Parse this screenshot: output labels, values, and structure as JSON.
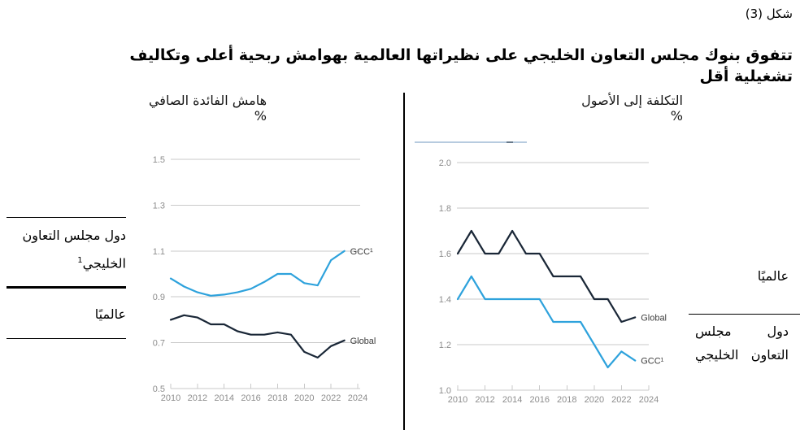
{
  "figure_label": "شكل (3)",
  "subtitle": "تتفوق بنوك مجلس التعاون الخليجي على نظيراتها العالمية بهوامش ربحية أعلى وتكاليف تشغيلية أقل",
  "annotations_left": {
    "gcc_label": "دول مجلس التعاون الخليجي",
    "gcc_footnote_mark": "1",
    "global_label": "عالميًا"
  },
  "annotations_right": {
    "global_label": "عالميًا",
    "gcc_label_line1": "دول مجلس",
    "gcc_label_line2": "التعاون الخليجي"
  },
  "colors": {
    "gcc_line": "#2ea2dc",
    "global_line": "#1a2737",
    "grid": "#c9c9c9",
    "axis_text": "#8d8d8d",
    "series_label_text": "#3d3d3d",
    "artifact_line": "#b7cbdf"
  },
  "chart_data": [
    {
      "type": "line",
      "title": "هامش الفائدة الصافي %",
      "x": [
        2010,
        2011,
        2012,
        2013,
        2014,
        2015,
        2016,
        2017,
        2018,
        2019,
        2020,
        2021,
        2022,
        2023
      ],
      "xticks": [
        2010,
        2012,
        2014,
        2016,
        2018,
        2020,
        2022,
        2024
      ],
      "xlim": [
        2010,
        2024
      ],
      "ylim": [
        0.5,
        1.5
      ],
      "yticks": [
        0.5,
        0.7,
        0.9,
        1.1,
        1.3,
        1.5
      ],
      "grid": true,
      "legend_position": "line-end-labels",
      "series": [
        {
          "name": "GCC¹",
          "color_key": "gcc_line",
          "values": [
            0.98,
            0.945,
            0.92,
            0.905,
            0.91,
            0.92,
            0.935,
            0.965,
            1.0,
            1.0,
            0.96,
            0.95,
            1.06,
            1.1
          ]
        },
        {
          "name": "Global",
          "color_key": "global_line",
          "values": [
            0.8,
            0.82,
            0.81,
            0.78,
            0.78,
            0.75,
            0.735,
            0.735,
            0.745,
            0.735,
            0.66,
            0.635,
            0.685,
            0.71
          ]
        }
      ]
    },
    {
      "type": "line",
      "title": "التكلفة إلى الأصول %",
      "x": [
        2010,
        2011,
        2012,
        2013,
        2014,
        2015,
        2016,
        2017,
        2018,
        2019,
        2020,
        2021,
        2022,
        2023
      ],
      "xticks": [
        2010,
        2012,
        2014,
        2016,
        2018,
        2020,
        2022,
        2024
      ],
      "xlim": [
        2010,
        2024
      ],
      "ylim": [
        1.0,
        2.0
      ],
      "yticks": [
        1.0,
        1.2,
        1.4,
        1.6,
        1.8,
        2.0
      ],
      "grid": true,
      "legend_position": "line-end-labels",
      "series": [
        {
          "name": "Global",
          "color_key": "global_line",
          "values": [
            1.6,
            1.7,
            1.6,
            1.6,
            1.7,
            1.6,
            1.6,
            1.5,
            1.5,
            1.5,
            1.4,
            1.4,
            1.3,
            1.32
          ]
        },
        {
          "name": "GCC¹",
          "color_key": "gcc_line",
          "values": [
            1.4,
            1.5,
            1.4,
            1.4,
            1.4,
            1.4,
            1.4,
            1.3,
            1.3,
            1.3,
            1.2,
            1.1,
            1.17,
            1.13
          ]
        }
      ]
    }
  ]
}
